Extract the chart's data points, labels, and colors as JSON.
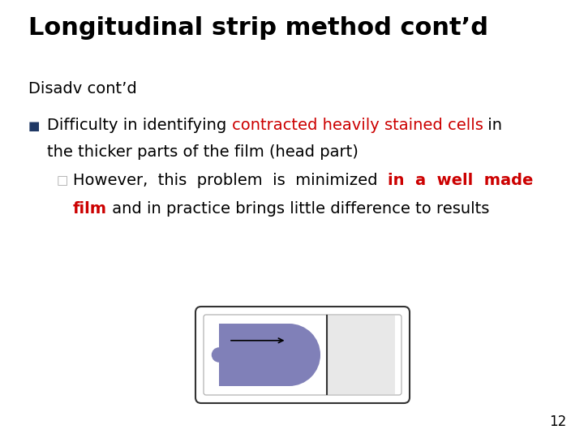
{
  "title": "Longitudinal strip method cont’d",
  "title_fontsize": 22,
  "bg_color": "#ffffff",
  "subtitle": "Disadv cont’d",
  "subtitle_fontsize": 14,
  "bullet_color": "#1f3864",
  "line1_parts": [
    {
      "text": "Difficulty in identifying ",
      "color": "#000000",
      "bold": false
    },
    {
      "text": "contracted heavily stained cells",
      "color": "#cc0000",
      "bold": false
    },
    {
      "text": " in",
      "color": "#000000",
      "bold": false
    }
  ],
  "line2": "the thicker parts of the film (head part)",
  "line2_color": "#000000",
  "line3_parts": [
    {
      "text": "However,  this  problem  is  minimized  ",
      "color": "#000000",
      "bold": false
    },
    {
      "text": "in  a  well  made",
      "color": "#cc0000",
      "bold": true
    }
  ],
  "line4_parts": [
    {
      "text": "film",
      "color": "#cc0000",
      "bold": true
    },
    {
      "text": " and in practice brings little difference to results",
      "color": "#000000",
      "bold": false
    }
  ],
  "page_num": "12",
  "slide_color": "#8080b8",
  "slide_light_color": "#e8e8e8",
  "arrow_color": "#000000",
  "main_fontsize": 14,
  "sub_fontsize": 14
}
